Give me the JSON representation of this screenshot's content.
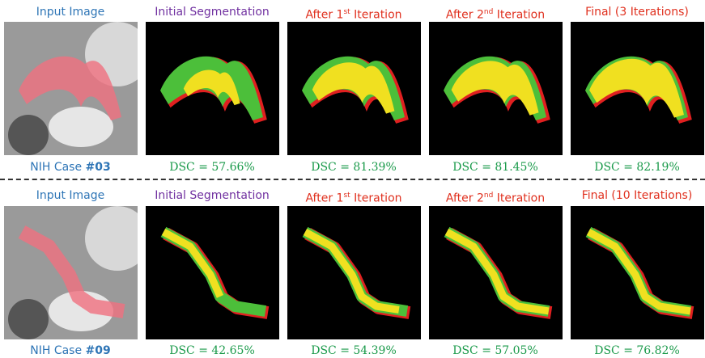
{
  "rows": [
    {
      "headers": [
        {
          "text": "Input Image"
        },
        {
          "text": "Initial Segmentation"
        },
        {
          "prefix": "After 1",
          "sup": "st",
          "suffix": " Iteration"
        },
        {
          "prefix": "After 2",
          "sup": "nd",
          "suffix": " Iteration"
        },
        {
          "text": "Final (3 Iterations)"
        }
      ],
      "case": {
        "label": "NIH Case",
        "id": "#03"
      },
      "dsc": [
        "DSC = 57.66%",
        "DSC = 81.39%",
        "DSC = 81.45%",
        "DSC = 82.19%"
      ]
    },
    {
      "headers": [
        {
          "text": "Input Image"
        },
        {
          "text": "Initial Segmentation"
        },
        {
          "prefix": "After 1",
          "sup": "st",
          "suffix": " Iteration"
        },
        {
          "prefix": "After 2",
          "sup": "nd",
          "suffix": " Iteration"
        },
        {
          "text": "Final (10 Iterations)"
        }
      ],
      "case": {
        "label": "NIH Case",
        "id": "#09"
      },
      "dsc": [
        "DSC = 42.65%",
        "DSC = 54.39%",
        "DSC = 57.05%",
        "DSC = 76.82%"
      ]
    }
  ]
}
